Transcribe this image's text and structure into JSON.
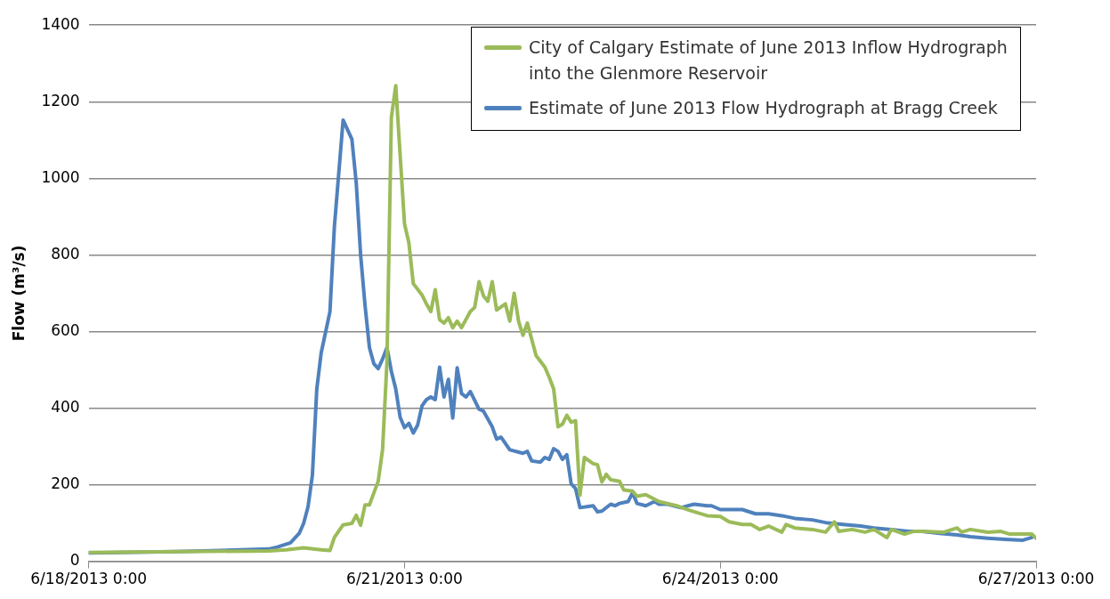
{
  "chart_data": {
    "type": "line",
    "ylabel": "Flow (m³/s)",
    "xlim": [
      "2013-06-18T00:00",
      "2013-06-27T00:00"
    ],
    "xticks": [
      {
        "value": "2013-06-18T00:00",
        "label": "6/18/2013 0:00"
      },
      {
        "value": "2013-06-21T00:00",
        "label": "6/21/2013 0:00"
      },
      {
        "value": "2013-06-24T00:00",
        "label": "6/24/2013 0:00"
      },
      {
        "value": "2013-06-27T00:00",
        "label": "6/27/2013 0:00"
      }
    ],
    "ylim": [
      0,
      1400
    ],
    "yticks": [
      0,
      200,
      400,
      600,
      800,
      1000,
      1200,
      1400
    ],
    "grid": "y",
    "legend": "top right",
    "marker": "none",
    "line_style": "solid",
    "series": [
      {
        "name": "City of Calgary Estimate of June 2013 Inflow Hydrograph into the Glenmore Reservoir",
        "color": "#9bbb59",
        "x": [
          "2013-06-18T00:00",
          "2013-06-18T20:00",
          "2013-06-19T17:00",
          "2013-06-19T21:00",
          "2013-06-20T01:00",
          "2013-06-20T05:00",
          "2013-06-20T07:00",
          "2013-06-20T08:00",
          "2013-06-20T10:00",
          "2013-06-20T12:00",
          "2013-06-20T13:00",
          "2013-06-20T14:00",
          "2013-06-20T15:00",
          "2013-06-20T16:00",
          "2013-06-20T18:00",
          "2013-06-20T19:00",
          "2013-06-20T20:00",
          "2013-06-20T21:00",
          "2013-06-20T22:00",
          "2013-06-21T00:00",
          "2013-06-21T01:00",
          "2013-06-21T02:00",
          "2013-06-21T04:00",
          "2013-06-21T05:00",
          "2013-06-21T06:00",
          "2013-06-21T07:00",
          "2013-06-21T08:00",
          "2013-06-21T09:00",
          "2013-06-21T10:00",
          "2013-06-21T11:00",
          "2013-06-21T12:00",
          "2013-06-21T13:00",
          "2013-06-21T15:00",
          "2013-06-21T16:00",
          "2013-06-21T17:00",
          "2013-06-21T18:00",
          "2013-06-21T19:00",
          "2013-06-21T20:00",
          "2013-06-21T21:00",
          "2013-06-21T23:00",
          "2013-06-22T00:00",
          "2013-06-22T01:00",
          "2013-06-22T02:00",
          "2013-06-22T03:00",
          "2013-06-22T04:00",
          "2013-06-22T06:00",
          "2013-06-22T08:00",
          "2013-06-22T09:00",
          "2013-06-22T10:00",
          "2013-06-22T11:00",
          "2013-06-22T12:00",
          "2013-06-22T13:00",
          "2013-06-22T14:00",
          "2013-06-22T15:00",
          "2013-06-22T16:00",
          "2013-06-22T17:00",
          "2013-06-22T19:00",
          "2013-06-22T20:00",
          "2013-06-22T21:00",
          "2013-06-22T22:00",
          "2013-06-22T23:00",
          "2013-06-23T01:00",
          "2013-06-23T02:00",
          "2013-06-23T04:00",
          "2013-06-23T05:00",
          "2013-06-23T07:00",
          "2013-06-23T10:00",
          "2013-06-23T14:00",
          "2013-06-23T17:00",
          "2013-06-23T21:00",
          "2013-06-24T00:00",
          "2013-06-24T02:00",
          "2013-06-24T05:00",
          "2013-06-24T07:00",
          "2013-06-24T09:00",
          "2013-06-24T11:00",
          "2013-06-24T14:00",
          "2013-06-24T15:00",
          "2013-06-24T17:00",
          "2013-06-24T21:00",
          "2013-06-25T00:00",
          "2013-06-25T02:00",
          "2013-06-25T03:00",
          "2013-06-25T06:00",
          "2013-06-25T09:00",
          "2013-06-25T11:00",
          "2013-06-25T14:00",
          "2013-06-25T15:00",
          "2013-06-25T18:00",
          "2013-06-25T20:00",
          "2013-06-25T22:00",
          "2013-06-26T03:00",
          "2013-06-26T06:00",
          "2013-06-26T07:00",
          "2013-06-26T09:00",
          "2013-06-26T13:00",
          "2013-06-26T16:00",
          "2013-06-26T18:00",
          "2013-06-26T23:00",
          "2013-06-27T00:00"
        ],
        "values": [
          23,
          25,
          27,
          30,
          35,
          30,
          28,
          62,
          95,
          99,
          120,
          94,
          147,
          147,
          209,
          292,
          521,
          1159,
          1242,
          881,
          831,
          725,
          695,
          672,
          652,
          709,
          631,
          622,
          636,
          610,
          627,
          610,
          652,
          663,
          730,
          693,
          679,
          730,
          656,
          672,
          627,
          700,
          627,
          590,
          622,
          537,
          507,
          480,
          450,
          351,
          358,
          381,
          363,
          367,
          172,
          271,
          255,
          252,
          207,
          227,
          213,
          209,
          186,
          183,
          170,
          174,
          156,
          145,
          133,
          119,
          117,
          103,
          96,
          96,
          83,
          92,
          76,
          96,
          87,
          83,
          76,
          103,
          78,
          83,
          76,
          83,
          62,
          83,
          71,
          78,
          78,
          76,
          87,
          76,
          83,
          76,
          78,
          71,
          71,
          60
        ]
      },
      {
        "name": "Estimate of June 2013 Flow Hydrograph at Bragg Creek",
        "color": "#4f81bd",
        "x": [
          "2013-06-18T00:00",
          "2013-06-18T20:00",
          "2013-06-19T17:00",
          "2013-06-19T19:00",
          "2013-06-19T22:00",
          "2013-06-20T00:00",
          "2013-06-20T01:00",
          "2013-06-20T02:00",
          "2013-06-20T03:00",
          "2013-06-20T04:00",
          "2013-06-20T05:00",
          "2013-06-20T07:00",
          "2013-06-20T08:00",
          "2013-06-20T10:00",
          "2013-06-20T12:00",
          "2013-06-20T13:00",
          "2013-06-20T14:00",
          "2013-06-20T15:00",
          "2013-06-20T16:00",
          "2013-06-20T17:00",
          "2013-06-20T18:00",
          "2013-06-20T19:00",
          "2013-06-20T20:00",
          "2013-06-20T21:00",
          "2013-06-20T22:00",
          "2013-06-20T23:00",
          "2013-06-21T00:00",
          "2013-06-21T01:00",
          "2013-06-21T02:00",
          "2013-06-21T03:00",
          "2013-06-21T04:00",
          "2013-06-21T05:00",
          "2013-06-21T06:00",
          "2013-06-21T07:00",
          "2013-06-21T08:00",
          "2013-06-21T09:00",
          "2013-06-21T10:00",
          "2013-06-21T11:00",
          "2013-06-21T12:00",
          "2013-06-21T13:00",
          "2013-06-21T14:00",
          "2013-06-21T15:00",
          "2013-06-21T17:00",
          "2013-06-21T18:00",
          "2013-06-21T20:00",
          "2013-06-21T21:00",
          "2013-06-21T22:00",
          "2013-06-22T00:00",
          "2013-06-22T03:00",
          "2013-06-22T04:00",
          "2013-06-22T05:00",
          "2013-06-22T07:00",
          "2013-06-22T08:00",
          "2013-06-22T09:00",
          "2013-06-22T10:00",
          "2013-06-22T11:00",
          "2013-06-22T12:00",
          "2013-06-22T13:00",
          "2013-06-22T14:00",
          "2013-06-22T15:00",
          "2013-06-22T16:00",
          "2013-06-22T19:00",
          "2013-06-22T20:00",
          "2013-06-22T21:00",
          "2013-06-22T23:00",
          "2013-06-23T00:00",
          "2013-06-23T01:00",
          "2013-06-23T03:00",
          "2013-06-23T04:00",
          "2013-06-23T05:00",
          "2013-06-23T07:00",
          "2013-06-23T09:00",
          "2013-06-23T10:00",
          "2013-06-23T12:00",
          "2013-06-23T15:00",
          "2013-06-23T18:00",
          "2013-06-23T21:00",
          "2013-06-23T22:00",
          "2013-06-24T00:00",
          "2013-06-24T02:00",
          "2013-06-24T05:00",
          "2013-06-24T08:00",
          "2013-06-24T11:00",
          "2013-06-24T14:00",
          "2013-06-24T17:00",
          "2013-06-24T21:00",
          "2013-06-25T00:00",
          "2013-06-25T04:00",
          "2013-06-25T08:00",
          "2013-06-25T11:00",
          "2013-06-25T15:00",
          "2013-06-25T19:00",
          "2013-06-25T22:00",
          "2013-06-26T02:00",
          "2013-06-26T06:00",
          "2013-06-26T09:00",
          "2013-06-26T13:00",
          "2013-06-26T17:00",
          "2013-06-26T21:00",
          "2013-06-26T23:00"
        ],
        "values": [
          22,
          25,
          32,
          37,
          48,
          73,
          99,
          142,
          225,
          450,
          544,
          652,
          872,
          1152,
          1102,
          987,
          799,
          668,
          558,
          516,
          503,
          528,
          558,
          496,
          450,
          376,
          349,
          360,
          335,
          356,
          406,
          422,
          429,
          422,
          507,
          429,
          475,
          374,
          505,
          438,
          429,
          443,
          397,
          392,
          351,
          319,
          324,
          291,
          282,
          287,
          262,
          259,
          271,
          266,
          294,
          287,
          266,
          278,
          202,
          190,
          140,
          145,
          129,
          131,
          149,
          145,
          151,
          156,
          179,
          151,
          145,
          156,
          149,
          149,
          140,
          149,
          145,
          145,
          135,
          135,
          135,
          124,
          124,
          119,
          112,
          108,
          101,
          96,
          92,
          87,
          83,
          78,
          78,
          73,
          69,
          64,
          60,
          57,
          55,
          62
        ]
      }
    ]
  }
}
